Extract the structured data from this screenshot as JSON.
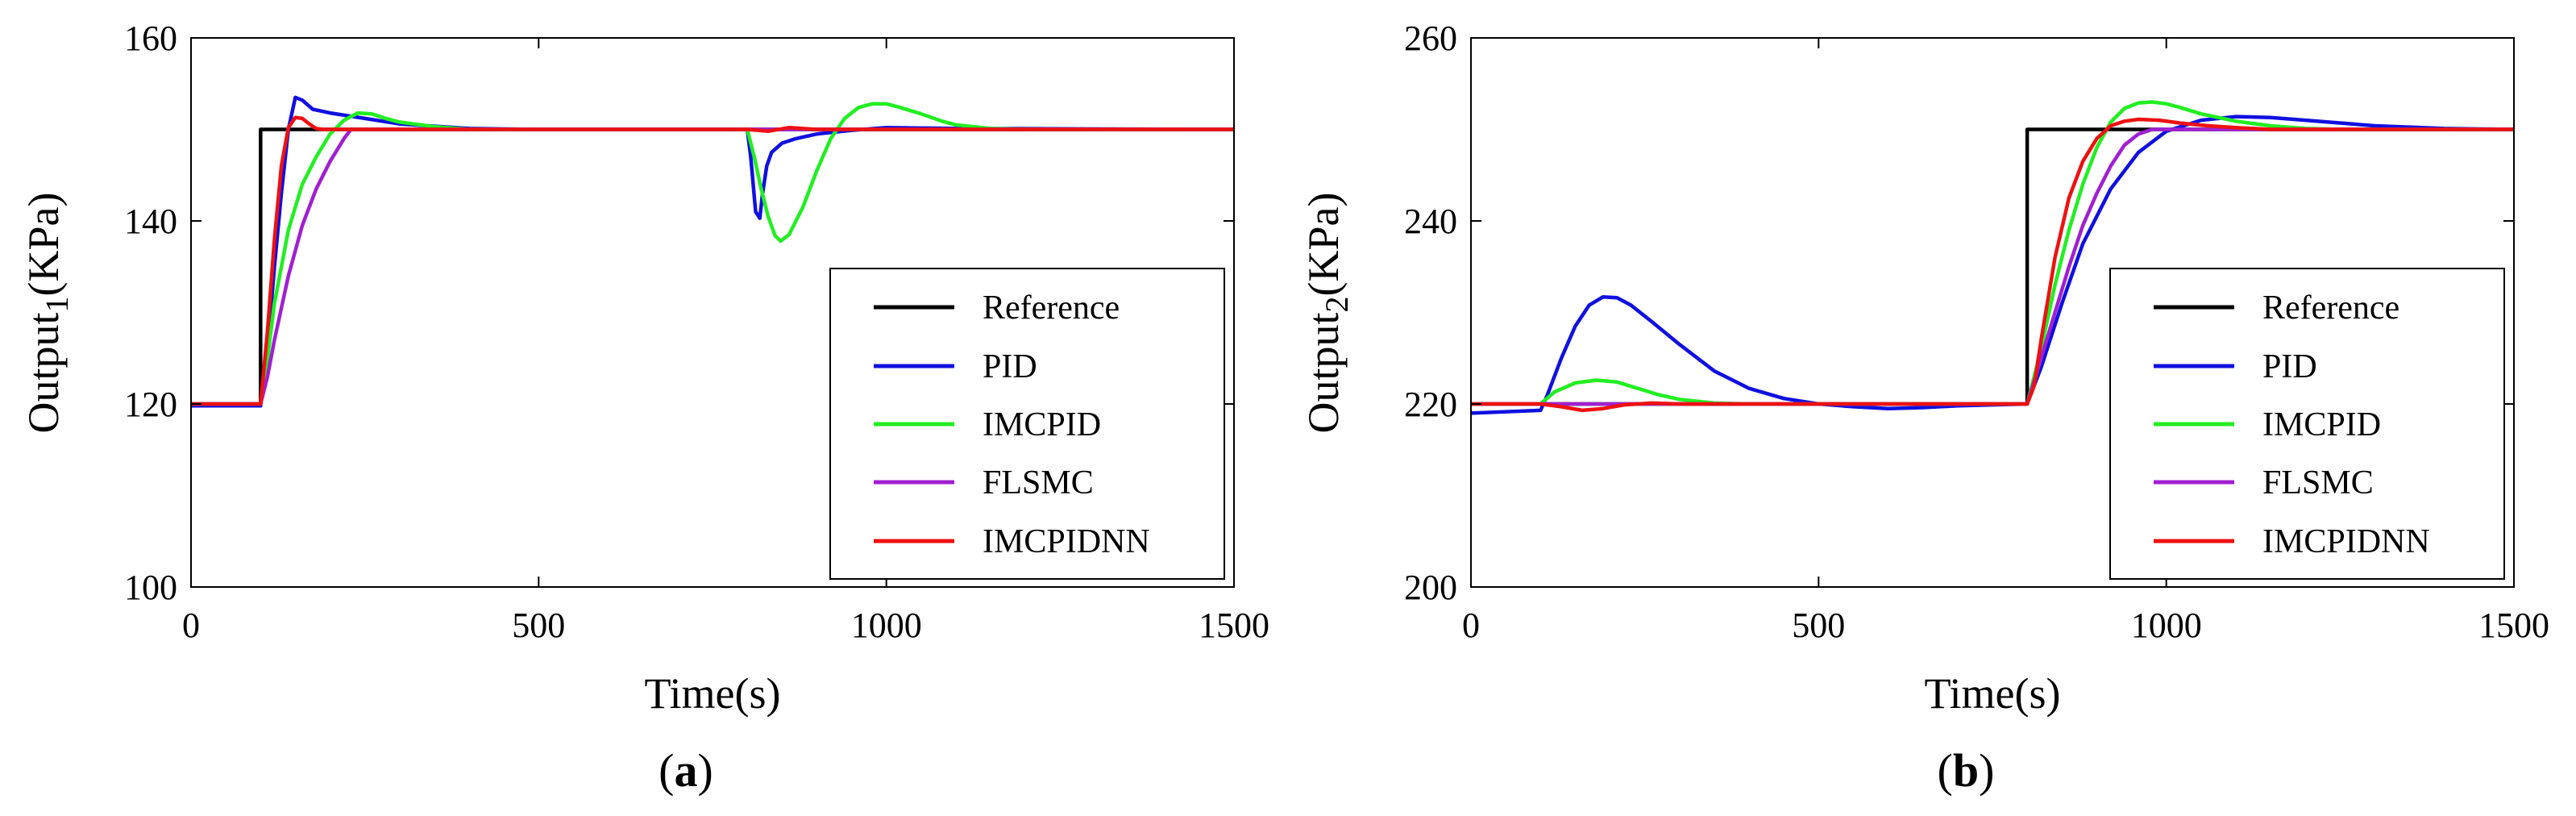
{
  "chart_data": [
    {
      "type": "line",
      "panel_label": "a",
      "xlabel": "Time(s)",
      "ylabel_main": "Output",
      "ylabel_sub": "1",
      "ylabel_unit": "(KPa)",
      "xlim": [
        0,
        1500
      ],
      "ylim": [
        100,
        160
      ],
      "xticks": [
        "0",
        "500",
        "1000",
        "1500"
      ],
      "yticks": [
        "100",
        "120",
        "140",
        "160"
      ],
      "grid": false,
      "legend_position": "bottom-right",
      "series": [
        {
          "name": "Reference",
          "color": "#000000",
          "x": [
            0,
            100,
            100,
            1500
          ],
          "y": [
            120,
            120,
            150,
            150
          ]
        },
        {
          "name": "PID",
          "color": "#1010e0",
          "x": [
            0,
            100,
            110,
            120,
            130,
            140,
            150,
            160,
            175,
            200,
            250,
            300,
            400,
            500,
            800,
            805,
            812,
            818,
            822,
            828,
            835,
            850,
            870,
            900,
            950,
            1000,
            1100,
            1500
          ],
          "y": [
            119.8,
            119.8,
            126,
            135,
            143,
            150,
            153.5,
            153.2,
            152.2,
            151.8,
            151.2,
            150.6,
            150.1,
            150,
            150,
            147,
            141,
            140.3,
            143,
            146,
            147.5,
            148.5,
            149,
            149.5,
            149.9,
            150.2,
            150.1,
            150
          ]
        },
        {
          "name": "IMCPID",
          "color": "#22ee22",
          "x": [
            0,
            100,
            110,
            120,
            140,
            160,
            180,
            200,
            220,
            240,
            260,
            280,
            300,
            350,
            400,
            800,
            810,
            820,
            830,
            840,
            848,
            860,
            880,
            900,
            920,
            940,
            960,
            980,
            1000,
            1020,
            1050,
            1080,
            1100,
            1150,
            1200,
            1500
          ],
          "y": [
            120,
            120,
            125,
            131,
            139,
            144,
            147,
            149.5,
            151,
            151.8,
            151.7,
            151.2,
            150.8,
            150.3,
            150,
            150,
            147,
            143.5,
            140.5,
            138.4,
            137.8,
            138.5,
            141.5,
            145.5,
            149,
            151.2,
            152.4,
            152.8,
            152.8,
            152.4,
            151.7,
            150.9,
            150.5,
            150.1,
            150,
            150
          ]
        },
        {
          "name": "FLSMC",
          "color": "#a020d0",
          "x": [
            0,
            100,
            110,
            120,
            140,
            160,
            180,
            200,
            220,
            230,
            240,
            1500
          ],
          "y": [
            120,
            120,
            123,
            127,
            134,
            139.5,
            143.5,
            146.5,
            149,
            150,
            150,
            150
          ]
        },
        {
          "name": "IMCPIDNN",
          "color": "#ee1111",
          "x": [
            0,
            100,
            110,
            120,
            130,
            140,
            150,
            160,
            170,
            180,
            190,
            200,
            800,
            830,
            860,
            900,
            1500
          ],
          "y": [
            120,
            120,
            128,
            138,
            146,
            150.2,
            151.3,
            151.2,
            150.6,
            150.1,
            150,
            150,
            150,
            149.8,
            150.2,
            150,
            150
          ]
        }
      ]
    },
    {
      "type": "line",
      "panel_label": "b",
      "xlabel": "Time(s)",
      "ylabel_main": "Output",
      "ylabel_sub": "2",
      "ylabel_unit": "(KPa)",
      "xlim": [
        0,
        1500
      ],
      "ylim": [
        200,
        260
      ],
      "xticks": [
        "0",
        "500",
        "1000",
        "1500"
      ],
      "yticks": [
        "200",
        "220",
        "240",
        "260"
      ],
      "grid": false,
      "legend_position": "bottom-right",
      "series": [
        {
          "name": "Reference",
          "color": "#000000",
          "x": [
            0,
            800,
            800,
            1500
          ],
          "y": [
            220,
            220,
            250,
            250
          ]
        },
        {
          "name": "PID",
          "color": "#1010e0",
          "x": [
            0,
            100,
            110,
            130,
            150,
            170,
            190,
            210,
            230,
            260,
            300,
            350,
            400,
            450,
            500,
            550,
            600,
            650,
            700,
            750,
            800,
            820,
            850,
            880,
            920,
            960,
            1000,
            1050,
            1100,
            1150,
            1200,
            1300,
            1400,
            1500
          ],
          "y": [
            219,
            219.3,
            221,
            225,
            228.5,
            230.8,
            231.7,
            231.6,
            230.8,
            229,
            226.5,
            223.6,
            221.7,
            220.6,
            220,
            219.7,
            219.5,
            219.6,
            219.8,
            219.9,
            220,
            224,
            231,
            237.5,
            243.5,
            247.5,
            249.8,
            251,
            251.4,
            251.3,
            251,
            250.4,
            250.1,
            250
          ]
        },
        {
          "name": "IMCPID",
          "color": "#22ee22",
          "x": [
            0,
            100,
            120,
            150,
            180,
            210,
            240,
            270,
            300,
            350,
            400,
            800,
            820,
            840,
            860,
            880,
            900,
            920,
            940,
            960,
            980,
            1000,
            1020,
            1050,
            1100,
            1150,
            1200,
            1250,
            1500
          ],
          "y": [
            220,
            220,
            221.3,
            222.3,
            222.6,
            222.4,
            221.7,
            221,
            220.5,
            220.1,
            220,
            220,
            226,
            233,
            239,
            244,
            248,
            250.8,
            252.3,
            252.9,
            253,
            252.8,
            252.4,
            251.7,
            250.9,
            250.4,
            250.1,
            250,
            250
          ]
        },
        {
          "name": "FLSMC",
          "color": "#a020d0",
          "x": [
            0,
            800,
            820,
            840,
            860,
            880,
            900,
            920,
            940,
            960,
            980,
            1500
          ],
          "y": [
            220,
            220,
            225,
            230,
            235,
            239.5,
            243,
            246,
            248.3,
            249.5,
            250,
            250
          ]
        },
        {
          "name": "IMCPIDNN",
          "color": "#ee1111",
          "x": [
            0,
            100,
            130,
            160,
            190,
            220,
            260,
            300,
            800,
            810,
            820,
            840,
            860,
            880,
            900,
            920,
            940,
            960,
            990,
            1020,
            1060,
            1100,
            1150,
            1500
          ],
          "y": [
            220,
            220,
            219.7,
            219.3,
            219.5,
            219.9,
            220.1,
            220,
            220,
            222,
            227,
            236,
            242.5,
            246.5,
            249,
            250.4,
            250.9,
            251.1,
            251,
            250.7,
            250.4,
            250.2,
            250,
            250
          ]
        }
      ]
    }
  ]
}
